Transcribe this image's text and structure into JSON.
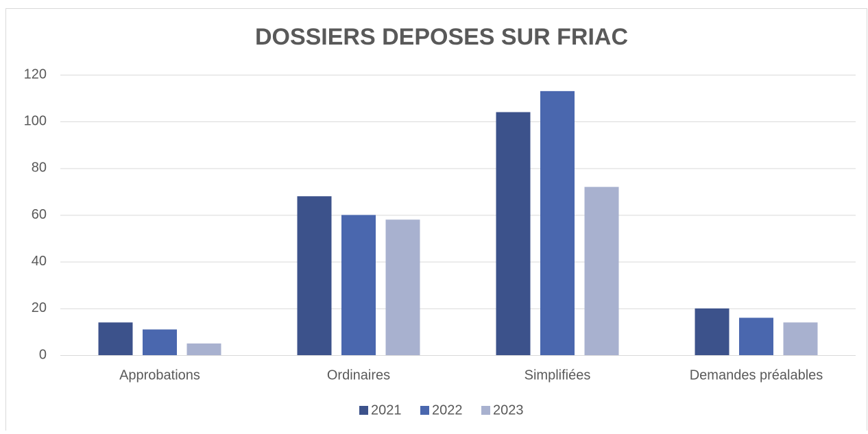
{
  "chart_data": {
    "type": "bar",
    "title": "DOSSIERS DEPOSES SUR FRIAC",
    "categories": [
      "Approbations",
      "Ordinaires",
      "Simplifiées",
      "Demandes préalables"
    ],
    "series": [
      {
        "name": "2021",
        "color": "#3c528b",
        "values": [
          14,
          68,
          104,
          20
        ]
      },
      {
        "name": "2022",
        "color": "#4a67ae",
        "values": [
          11,
          60,
          113,
          16
        ]
      },
      {
        "name": "2023",
        "color": "#a8b1cf",
        "values": [
          5,
          58,
          72,
          14
        ]
      }
    ],
    "ylim": [
      0,
      120
    ],
    "yticks": [
      0,
      20,
      40,
      60,
      80,
      100,
      120
    ],
    "grid": true,
    "legend": "bottom"
  }
}
